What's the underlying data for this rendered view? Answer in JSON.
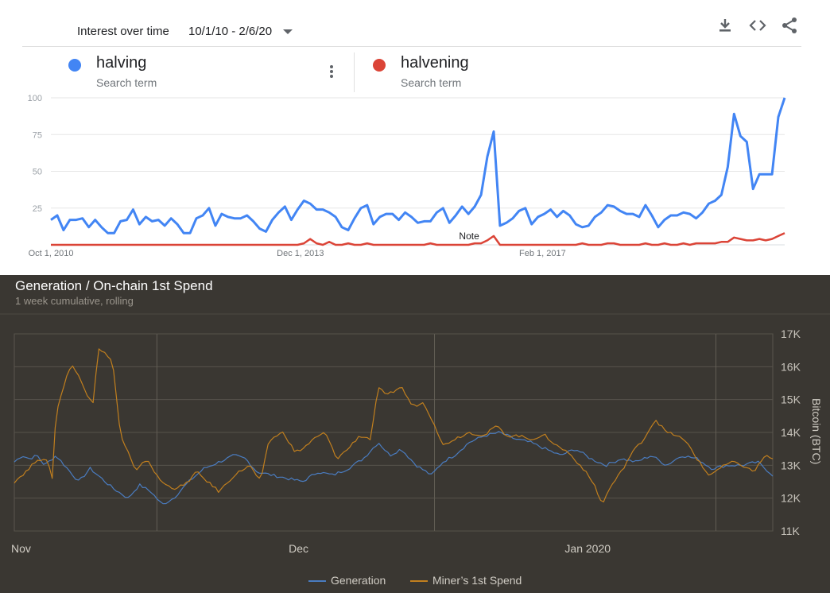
{
  "trends": {
    "title": "Interest over time",
    "date_range": "10/1/10 - 2/6/20",
    "toolbar": {
      "download_icon": "download-icon",
      "embed_icon": "embed-code-icon",
      "share_icon": "share-icon"
    },
    "terms": [
      {
        "name": "halving",
        "subtitle": "Search term",
        "color": "#4285f4"
      },
      {
        "name": "halvening",
        "subtitle": "Search term",
        "color": "#db4437"
      }
    ],
    "note_label": "Note"
  },
  "onchain": {
    "title": "Generation / On-chain 1st Spend",
    "subtitle": "1 week cumulative, rolling",
    "legend": [
      {
        "name": "Generation",
        "color": "#4a7cc0"
      },
      {
        "name": "Miner’s 1st Spend",
        "color": "#c17f1e"
      }
    ]
  },
  "chart_data": [
    {
      "type": "line",
      "title": "Interest over time",
      "x_range": [
        "2010-10-01",
        "2020-02-06"
      ],
      "ylim": [
        0,
        100
      ],
      "y_ticks": [
        25,
        50,
        75,
        100
      ],
      "x_tick_labels": [
        "Oct 1, 2010",
        "Dec 1, 2013",
        "Feb 1, 2017"
      ],
      "x_tick_fractions": [
        0.0,
        0.34,
        0.67
      ],
      "grid": true,
      "annotation": {
        "text": "Note",
        "x_fraction": 0.57
      },
      "series": [
        {
          "name": "halving",
          "color": "#4285f4",
          "values": [
            17,
            20,
            10,
            17,
            17,
            18,
            12,
            17,
            12,
            8,
            8,
            16,
            17,
            24,
            14,
            19,
            16,
            17,
            13,
            18,
            14,
            8,
            8,
            18,
            20,
            25,
            13,
            21,
            19,
            18,
            18,
            20,
            16,
            11,
            9,
            17,
            22,
            26,
            17,
            24,
            30,
            28,
            24,
            24,
            22,
            19,
            12,
            10,
            18,
            25,
            27,
            14,
            19,
            21,
            21,
            17,
            22,
            19,
            15,
            16,
            16,
            22,
            25,
            15,
            20,
            26,
            21,
            26,
            34,
            60,
            77,
            13,
            15,
            18,
            23,
            25,
            14,
            19,
            21,
            24,
            19,
            23,
            20,
            14,
            12,
            13,
            19,
            22,
            27,
            26,
            23,
            21,
            21,
            19,
            27,
            20,
            12,
            17,
            20,
            20,
            22,
            21,
            18,
            22,
            28,
            30,
            34,
            53,
            89,
            74,
            70,
            38,
            48,
            48,
            48,
            87,
            100
          ]
        },
        {
          "name": "halvening",
          "color": "#db4437",
          "values": [
            0,
            0,
            0,
            0,
            0,
            0,
            0,
            0,
            0,
            0,
            0,
            0,
            0,
            0,
            0,
            0,
            0,
            0,
            0,
            0,
            0,
            0,
            0,
            0,
            0,
            0,
            0,
            0,
            0,
            0,
            0,
            0,
            0,
            0,
            0,
            0,
            0,
            0,
            0,
            0,
            1,
            4,
            1,
            0,
            2,
            0,
            0,
            1,
            0,
            0,
            1,
            0,
            0,
            0,
            0,
            0,
            0,
            0,
            0,
            0,
            1,
            0,
            0,
            0,
            0,
            0,
            0,
            1,
            1,
            3,
            6,
            0,
            0,
            0,
            0,
            0,
            0,
            0,
            0,
            0,
            0,
            0,
            0,
            0,
            1,
            0,
            0,
            0,
            1,
            1,
            0,
            0,
            0,
            0,
            1,
            0,
            0,
            1,
            0,
            0,
            1,
            0,
            1,
            1,
            1,
            1,
            2,
            2,
            5,
            4,
            3,
            3,
            4,
            3,
            4,
            6,
            8
          ]
        }
      ]
    },
    {
      "type": "line",
      "title": "Generation / On-chain 1st Spend",
      "subtitle": "1 week cumulative, rolling",
      "ylabel": "Bitcoin (BTC)",
      "ylim": [
        11000,
        17000
      ],
      "y_ticks": [
        11000,
        12000,
        13000,
        14000,
        15000,
        16000,
        17000
      ],
      "y_tick_labels": [
        "11K",
        "12K",
        "13K",
        "14K",
        "15K",
        "16K",
        "17K"
      ],
      "x_tick_labels": [
        "Nov",
        "Dec",
        "Jan 2020"
      ],
      "x_tick_fractions": [
        0.0,
        0.366,
        0.73
      ],
      "y_axis_position": "right",
      "grid": true,
      "legend": "bottom",
      "series": [
        {
          "name": "Generation",
          "color": "#4a7cc0",
          "keypoints": [
            [
              0,
              13100
            ],
            [
              0.01,
              13300
            ],
            [
              0.02,
              13200
            ],
            [
              0.03,
              13300
            ],
            [
              0.04,
              13000
            ],
            [
              0.055,
              13300
            ],
            [
              0.07,
              12900
            ],
            [
              0.085,
              12500
            ],
            [
              0.1,
              12900
            ],
            [
              0.115,
              12600
            ],
            [
              0.13,
              12300
            ],
            [
              0.15,
              12000
            ],
            [
              0.165,
              12400
            ],
            [
              0.18,
              12200
            ],
            [
              0.195,
              11800
            ],
            [
              0.21,
              12000
            ],
            [
              0.23,
              12500
            ],
            [
              0.25,
              12900
            ],
            [
              0.27,
              13100
            ],
            [
              0.29,
              13300
            ],
            [
              0.305,
              13200
            ],
            [
              0.32,
              12800
            ],
            [
              0.34,
              12700
            ],
            [
              0.36,
              12600
            ],
            [
              0.38,
              12500
            ],
            [
              0.4,
              12800
            ],
            [
              0.42,
              12700
            ],
            [
              0.44,
              12900
            ],
            [
              0.46,
              13200
            ],
            [
              0.48,
              13700
            ],
            [
              0.495,
              13300
            ],
            [
              0.51,
              13500
            ],
            [
              0.53,
              13000
            ],
            [
              0.55,
              12700
            ],
            [
              0.565,
              13100
            ],
            [
              0.58,
              13300
            ],
            [
              0.6,
              13700
            ],
            [
              0.62,
              13900
            ],
            [
              0.64,
              14000
            ],
            [
              0.66,
              13800
            ],
            [
              0.68,
              13700
            ],
            [
              0.7,
              13500
            ],
            [
              0.72,
              13300
            ],
            [
              0.74,
              13500
            ],
            [
              0.76,
              13200
            ],
            [
              0.78,
              13000
            ],
            [
              0.8,
              13200
            ],
            [
              0.82,
              13100
            ],
            [
              0.84,
              13300
            ],
            [
              0.86,
              13000
            ],
            [
              0.88,
              13300
            ],
            [
              0.9,
              13200
            ],
            [
              0.92,
              12900
            ],
            [
              0.94,
              13000
            ],
            [
              0.96,
              13000
            ],
            [
              0.98,
              13100
            ],
            [
              1.0,
              12700
            ]
          ]
        },
        {
          "name": "Miner’s 1st Spend",
          "color": "#c17f1e",
          "keypoints": [
            [
              0,
              12500
            ],
            [
              0.02,
              12900
            ],
            [
              0.03,
              13200
            ],
            [
              0.045,
              13100
            ],
            [
              0.05,
              12600
            ],
            [
              0.055,
              14600
            ],
            [
              0.065,
              15400
            ],
            [
              0.075,
              16100
            ],
            [
              0.085,
              15700
            ],
            [
              0.095,
              15200
            ],
            [
              0.105,
              14900
            ],
            [
              0.11,
              16600
            ],
            [
              0.12,
              16400
            ],
            [
              0.13,
              16100
            ],
            [
              0.14,
              13900
            ],
            [
              0.15,
              13400
            ],
            [
              0.16,
              12800
            ],
            [
              0.175,
              13200
            ],
            [
              0.19,
              12600
            ],
            [
              0.2,
              12400
            ],
            [
              0.21,
              12300
            ],
            [
              0.225,
              12400
            ],
            [
              0.24,
              12800
            ],
            [
              0.26,
              12400
            ],
            [
              0.27,
              12200
            ],
            [
              0.29,
              12700
            ],
            [
              0.31,
              13000
            ],
            [
              0.325,
              12500
            ],
            [
              0.335,
              13700
            ],
            [
              0.345,
              13900
            ],
            [
              0.355,
              14000
            ],
            [
              0.37,
              13400
            ],
            [
              0.38,
              13500
            ],
            [
              0.395,
              13800
            ],
            [
              0.41,
              14000
            ],
            [
              0.425,
              13200
            ],
            [
              0.44,
              13500
            ],
            [
              0.455,
              13900
            ],
            [
              0.47,
              13800
            ],
            [
              0.48,
              15400
            ],
            [
              0.49,
              15100
            ],
            [
              0.51,
              15400
            ],
            [
              0.525,
              14800
            ],
            [
              0.54,
              14900
            ],
            [
              0.555,
              14200
            ],
            [
              0.565,
              13600
            ],
            [
              0.58,
              13800
            ],
            [
              0.6,
              14000
            ],
            [
              0.62,
              13900
            ],
            [
              0.635,
              14200
            ],
            [
              0.65,
              13900
            ],
            [
              0.665,
              13900
            ],
            [
              0.68,
              13800
            ],
            [
              0.7,
              13900
            ],
            [
              0.715,
              13600
            ],
            [
              0.73,
              13400
            ],
            [
              0.75,
              12900
            ],
            [
              0.765,
              12400
            ],
            [
              0.775,
              11800
            ],
            [
              0.785,
              12300
            ],
            [
              0.8,
              12800
            ],
            [
              0.815,
              13400
            ],
            [
              0.83,
              13800
            ],
            [
              0.845,
              14400
            ],
            [
              0.86,
              14000
            ],
            [
              0.875,
              13900
            ],
            [
              0.89,
              13600
            ],
            [
              0.9,
              13200
            ],
            [
              0.915,
              12700
            ],
            [
              0.93,
              12900
            ],
            [
              0.945,
              13100
            ],
            [
              0.96,
              13000
            ],
            [
              0.975,
              12800
            ],
            [
              0.99,
              13300
            ],
            [
              1.0,
              13200
            ]
          ]
        }
      ]
    }
  ]
}
